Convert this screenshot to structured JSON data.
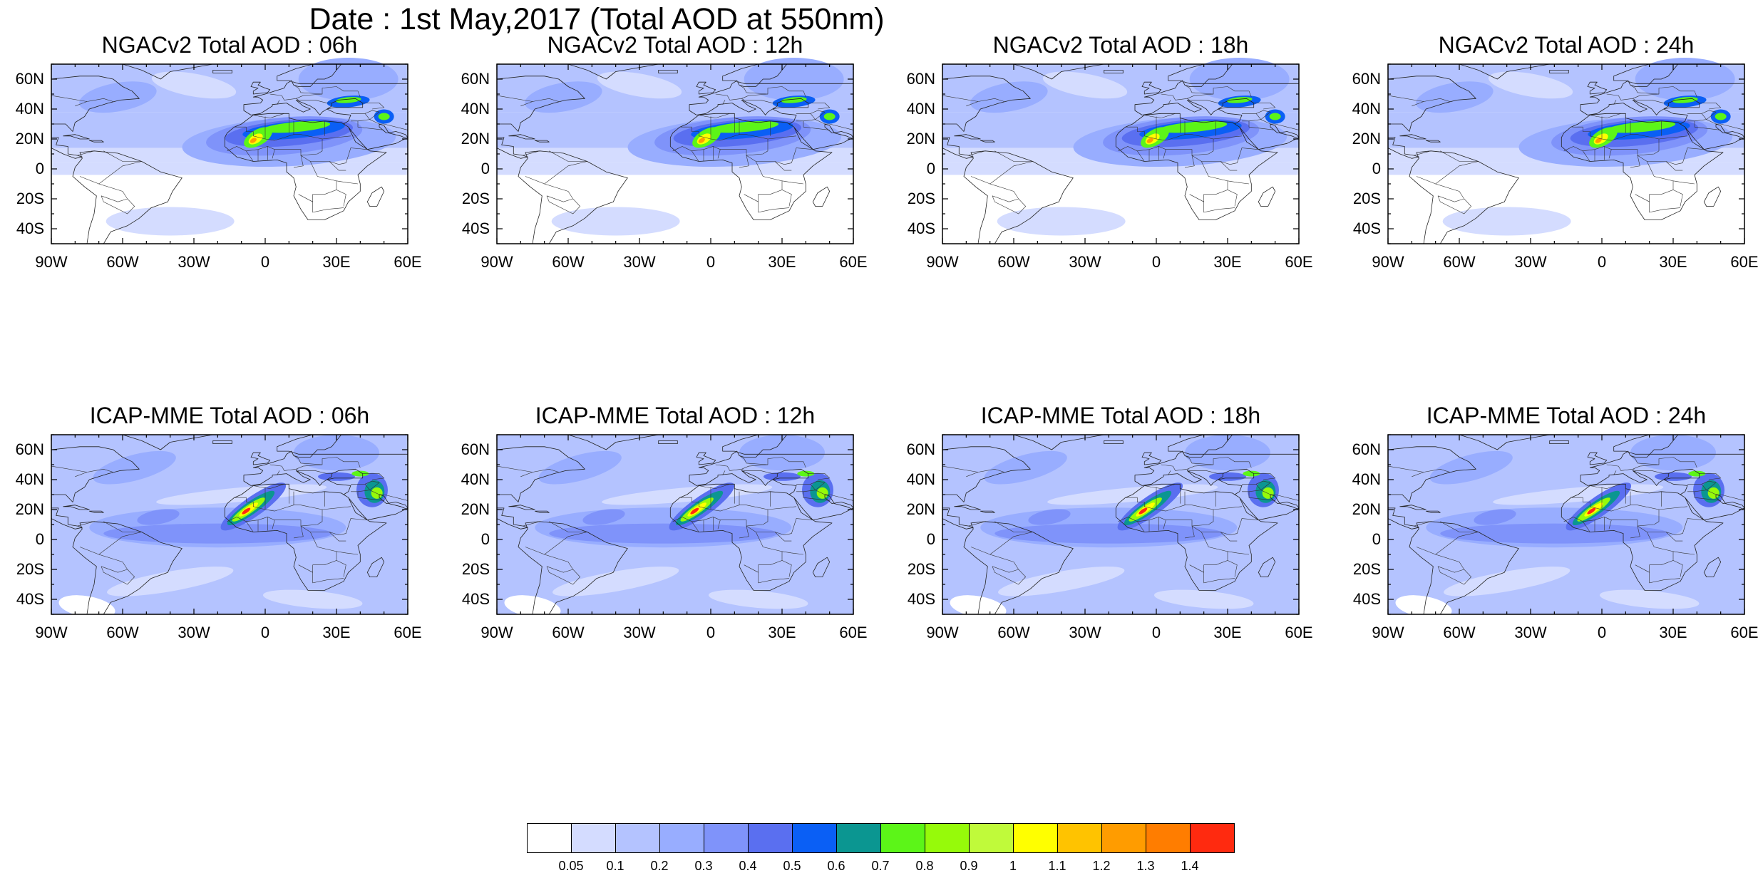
{
  "title": "Date : 1st May,2017 (Total AOD at 550nm)",
  "lat_labels": [
    "60N",
    "40N",
    "20N",
    "0",
    "20S",
    "40S"
  ],
  "lat_values": [
    60,
    40,
    20,
    0,
    -20,
    -40
  ],
  "lon_labels": [
    "90W",
    "60W",
    "30W",
    "0",
    "30E",
    "60E"
  ],
  "lon_values": [
    -90,
    -60,
    -30,
    0,
    30,
    60
  ],
  "map_extent": {
    "lon": [
      -90,
      60
    ],
    "lat": [
      -50,
      70
    ]
  },
  "panels": [
    {
      "title": "NGACv2 Total AOD : 06h",
      "model": "NGACv2",
      "hour": "06h"
    },
    {
      "title": "NGACv2 Total AOD : 12h",
      "model": "NGACv2",
      "hour": "12h"
    },
    {
      "title": "NGACv2 Total AOD : 18h",
      "model": "NGACv2",
      "hour": "18h"
    },
    {
      "title": "NGACv2 Total AOD : 24h",
      "model": "NGACv2",
      "hour": "24h"
    },
    {
      "title": "ICAP-MME Total AOD : 06h",
      "model": "ICAP-MME",
      "hour": "06h"
    },
    {
      "title": "ICAP-MME Total AOD : 12h",
      "model": "ICAP-MME",
      "hour": "12h"
    },
    {
      "title": "ICAP-MME Total AOD : 18h",
      "model": "ICAP-MME",
      "hour": "18h"
    },
    {
      "title": "ICAP-MME Total AOD : 24h",
      "model": "ICAP-MME",
      "hour": "24h"
    }
  ],
  "colorbar": {
    "labels": [
      "0.05",
      "0.1",
      "0.2",
      "0.3",
      "0.4",
      "0.5",
      "0.6",
      "0.7",
      "0.8",
      "0.9",
      "1",
      "1.1",
      "1.2",
      "1.3",
      "1.4"
    ],
    "colors": [
      "#ffffff",
      "#d4dcff",
      "#b4c3ff",
      "#98adff",
      "#7f93fa",
      "#5a6ff0",
      "#0a5ff5",
      "#0b9691",
      "#5cf518",
      "#96fa0a",
      "#c0fa3a",
      "#ffff00",
      "#ffc300",
      "#ff9c00",
      "#ff7d00",
      "#ff2a0f"
    ]
  }
}
